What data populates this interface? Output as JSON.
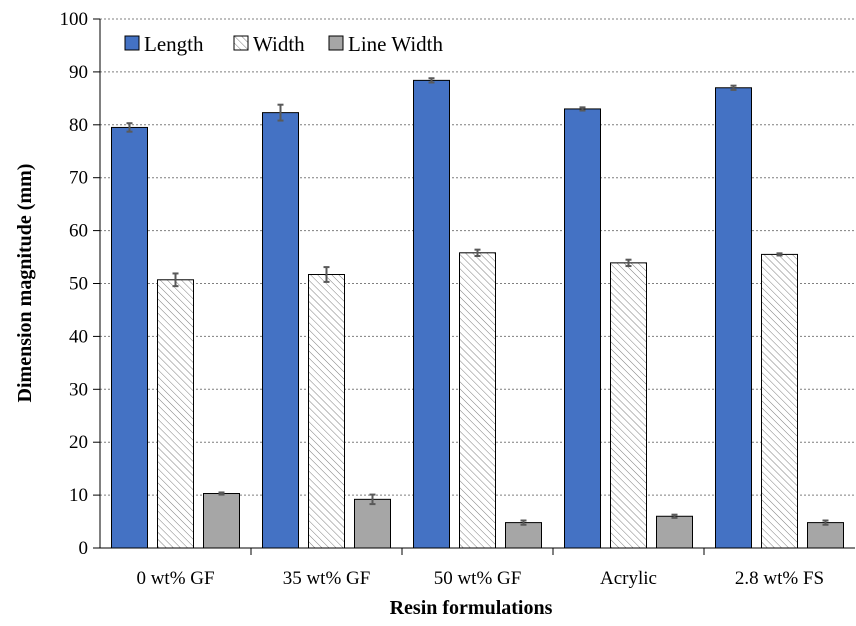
{
  "chart_data": {
    "type": "bar",
    "title": "",
    "xlabel": "Resin formulations",
    "ylabel": "Dimension magnitude (mm)",
    "ylim": [
      0,
      100
    ],
    "yticks": [
      0,
      10,
      20,
      30,
      40,
      50,
      60,
      70,
      80,
      90,
      100
    ],
    "grid": "horizontal dotted",
    "legend_position": "top-left",
    "categories": [
      "0 wt% GF",
      "35 wt% GF",
      "50 wt% GF",
      "Acrylic",
      "2.8 wt% FS"
    ],
    "series": [
      {
        "name": "Length",
        "style": "solid",
        "color": "#4472c4",
        "values": [
          79.5,
          82.3,
          88.4,
          83.0,
          87.0
        ],
        "errors": [
          0.8,
          1.5,
          0.4,
          0.3,
          0.4
        ]
      },
      {
        "name": "Width",
        "style": "hatched",
        "color": "#ffffff",
        "values": [
          50.7,
          51.7,
          55.8,
          53.9,
          55.5
        ],
        "errors": [
          1.2,
          1.4,
          0.6,
          0.6,
          0.2
        ]
      },
      {
        "name": "Line Width",
        "style": "solid",
        "color": "#a6a6a6",
        "values": [
          10.3,
          9.2,
          4.8,
          6.0,
          4.8
        ],
        "errors": [
          0.2,
          0.9,
          0.4,
          0.3,
          0.4
        ]
      }
    ]
  }
}
